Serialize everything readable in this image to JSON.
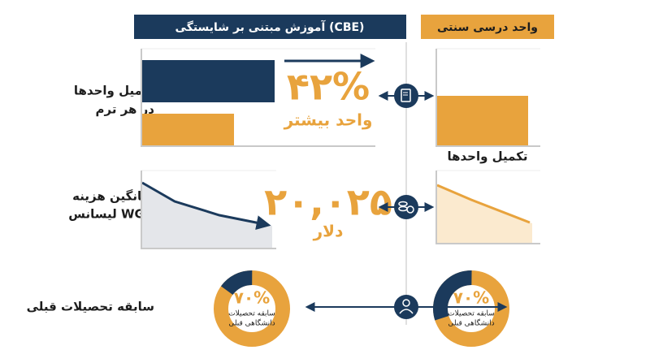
{
  "header": {
    "cbe": "آموزش مبتنی بر شایستگی (CBE)",
    "traditional": "واحد درسی سنتی"
  },
  "rows": [
    {
      "label": [
        "تکمیل واحدها",
        "در هر ترم"
      ],
      "stat": "۴۲%",
      "stat_caption": "واحد بیشتر",
      "traditional_caption": "تکمیل واحدها"
    },
    {
      "label": [
        "میانگین هزینه",
        "لیسانس WGU"
      ],
      "stat": "۲۰,۰۲۵",
      "stat_caption": "دلار"
    },
    {
      "label": "سابقه تحصیلات قبلی",
      "cbe_donut": {
        "value": "۷۰%",
        "caption": [
          "سابقه تحصیلات",
          "دانشگاهی قبلی"
        ]
      },
      "traditional_donut": {
        "value": "۷۰%",
        "caption": [
          "سابقه تحصیلات",
          "دانشگاهی قبلی"
        ]
      }
    }
  ]
}
